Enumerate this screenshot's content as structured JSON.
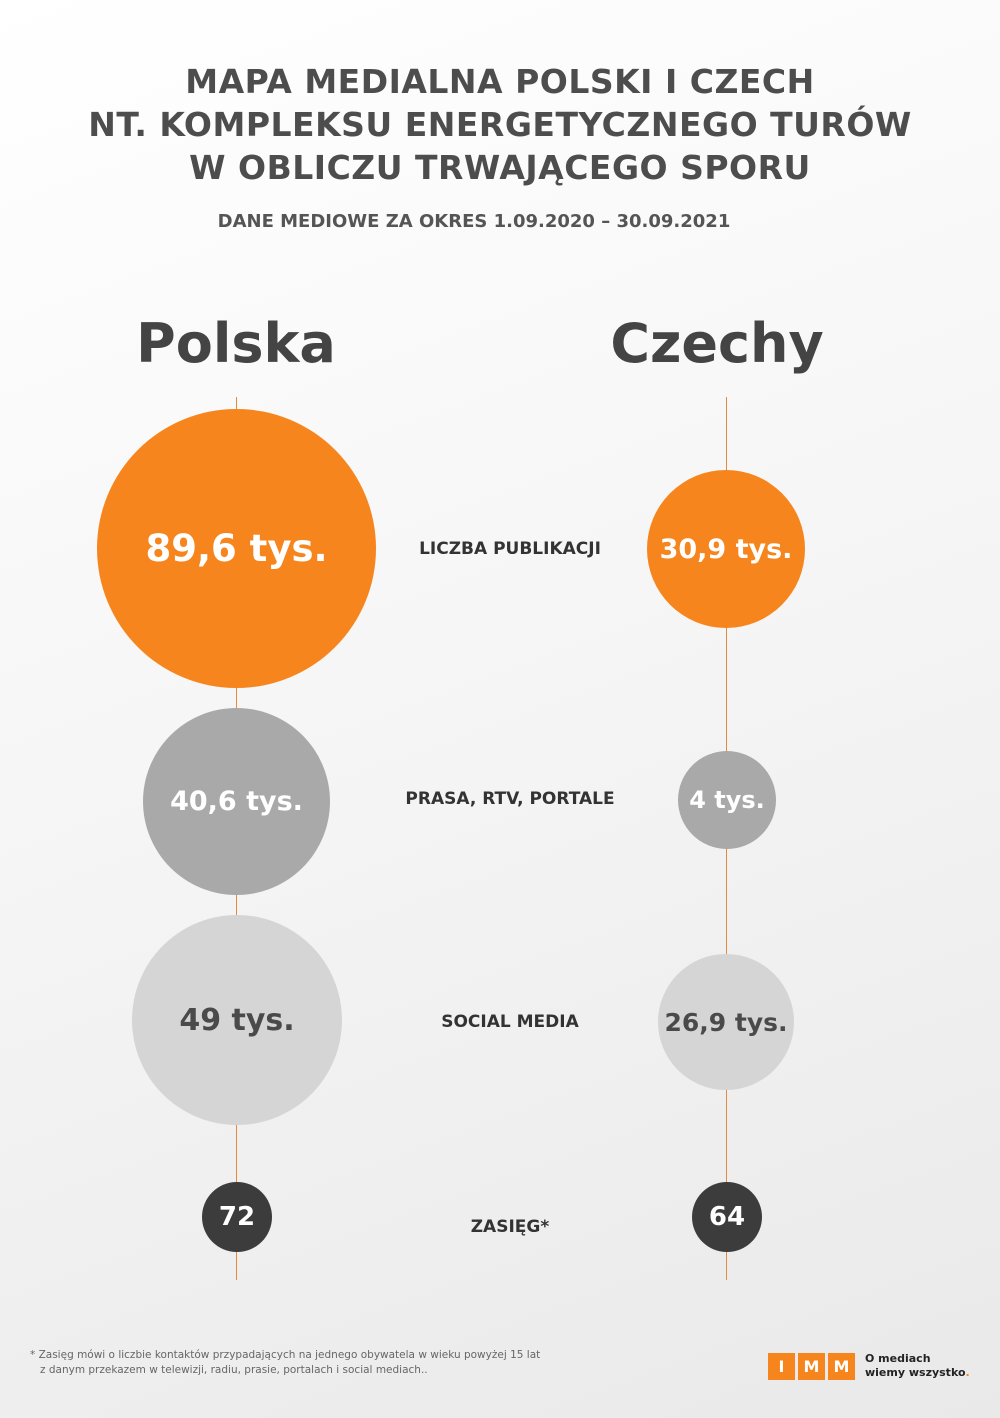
{
  "header": {
    "title_lines": [
      "MAPA MEDIALNA POLSKI I CZECH",
      "NT. KOMPLEKSU ENERGETYCZNEGO TURÓW",
      "W OBLICZU TRWAJĄCEGO SPORU"
    ],
    "subtitle": "DANE MEDIOWE ZA OKRES 1.09.2020 – 30.09.2021"
  },
  "countries": [
    "Polska",
    "Czechy"
  ],
  "metrics": [
    {
      "label": "LICZBA PUBLIKACJI",
      "polska": "89,6 tys.",
      "czechy": "30,9 tys.",
      "polska_value": 89.6,
      "czechy_value": 30.9,
      "unit": "tys."
    },
    {
      "label": "PRASA, RTV, PORTALE",
      "polska": "40,6 tys.",
      "czechy": "4 tys.",
      "polska_value": 40.6,
      "czechy_value": 4,
      "unit": "tys."
    },
    {
      "label": "SOCIAL MEDIA",
      "polska": "49 tys.",
      "czechy": "26,9 tys.",
      "polska_value": 49,
      "czechy_value": 26.9,
      "unit": "tys."
    },
    {
      "label": "ZASIĘG*",
      "polska": "72",
      "czechy": "64",
      "polska_value": 72,
      "czechy_value": 64
    }
  ],
  "colors": {
    "accent": "#f7851d",
    "mid_gray": "#a9a9a9",
    "light_gray": "#d5d5d5",
    "dark": "#3c3c3c"
  },
  "footnote_lines": [
    "* Zasięg mówi o liczbie kontaktów przypadających na jednego obywatela w wieku powyżej 15 lat",
    "z danym przekazem w telewizji, radiu, prasie, portalach i social mediach.."
  ],
  "logo": {
    "letters": [
      "I",
      "M",
      "M"
    ],
    "tagline_lines": [
      "O mediach",
      "wiemy wszystko"
    ],
    "tagline_suffix": "."
  }
}
